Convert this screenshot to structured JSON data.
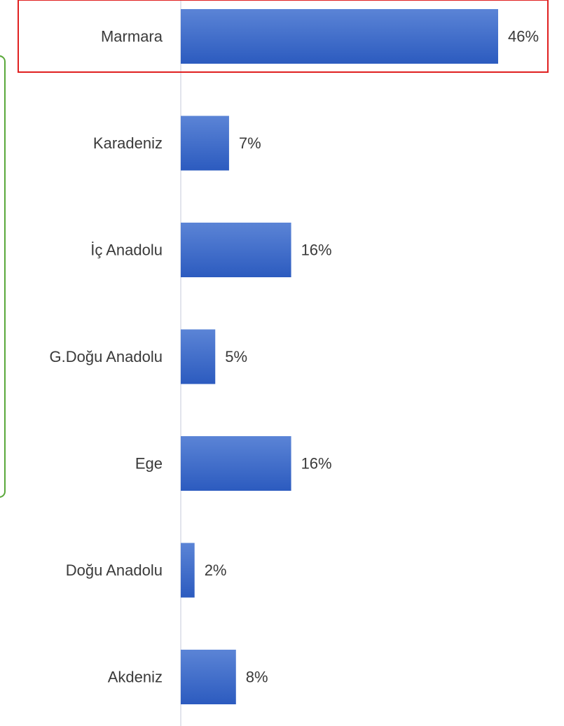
{
  "chart_data": {
    "type": "bar",
    "orientation": "horizontal",
    "categories": [
      "Marmara",
      "Karadeniz",
      "İç Anadolu",
      "G.Doğu Anadolu",
      "Ege",
      "Doğu Anadolu",
      "Akdeniz"
    ],
    "values": [
      46,
      7,
      16,
      5,
      16,
      2,
      8
    ],
    "value_labels": [
      "46%",
      "7%",
      "16%",
      "5%",
      "16%",
      "2%",
      "8%"
    ],
    "xlim": [
      0,
      46
    ],
    "grid": false,
    "legend": "none",
    "highlighted_category": "Marmara"
  },
  "colors": {
    "bar_top": "#5b84d6",
    "bar_bottom": "#2c5bbf",
    "highlight_border": "#e02020",
    "side_bracket": "#5aa83a",
    "axis_line": "#d8dce6",
    "text": "#3a3a3a"
  }
}
